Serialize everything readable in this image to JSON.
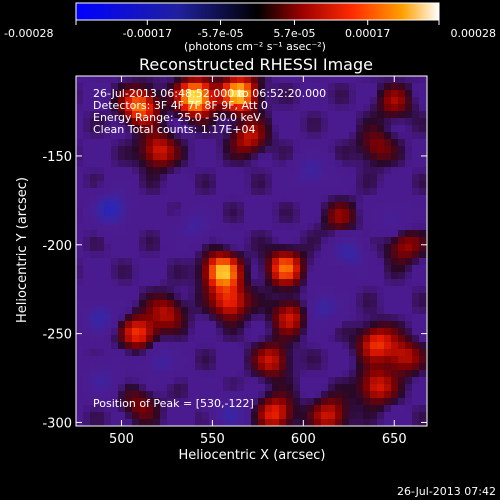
{
  "chart_data": {
    "type": "heatmap",
    "title": "Reconstructed RHESSI Image",
    "xlabel": "Heliocentric X (arcsec)",
    "ylabel": "Heliocentric Y (arcsec)",
    "xlim": [
      475,
      668
    ],
    "ylim": [
      -302,
      -105
    ],
    "x_ticks": [
      500,
      550,
      600,
      650
    ],
    "x_tick_labels": [
      "500",
      "550",
      "600",
      "650"
    ],
    "y_ticks": [
      -150,
      -200,
      -250,
      -300
    ],
    "y_tick_labels": [
      "-150",
      "-200",
      "-250",
      "-300"
    ],
    "colorbar": {
      "range": [
        -0.00028,
        0.00028
      ],
      "ticks": [
        -0.00028,
        -0.00017,
        -5.7e-05,
        5.7e-05,
        0.00017,
        0.00028
      ],
      "tick_labels": [
        "-0.00028",
        "-0.00017",
        "-5.7e-05",
        "5.7e-05",
        "0.00017",
        "0.00028"
      ],
      "units_label": "(photons cm⁻² s⁻¹ asec⁻²)"
    },
    "annotations": [
      "26-Jul-2013 06:48:52.000 to 06:52:20.000",
      "Detectors: 3F 4F 7F 8F 9F, Att 0",
      "Energy Range: 25.0 - 50.0 keV",
      "Clean    Total counts: 1.17E+04"
    ],
    "peak_label": "Position of Peak = [530,-122]",
    "peak": [
      530,
      -122
    ],
    "hotspots": [
      {
        "x": 541,
        "y": -117,
        "value": 0.00028
      },
      {
        "x": 565,
        "y": -115,
        "value": 0.00025
      },
      {
        "x": 510,
        "y": -122,
        "value": 0.0002
      },
      {
        "x": 520,
        "y": -147,
        "value": 0.00014
      },
      {
        "x": 570,
        "y": -140,
        "value": 0.00012
      },
      {
        "x": 555,
        "y": -215,
        "value": 0.00024
      },
      {
        "x": 560,
        "y": -232,
        "value": 0.00016
      },
      {
        "x": 590,
        "y": -213,
        "value": 0.00018
      },
      {
        "x": 593,
        "y": -240,
        "value": 0.00013
      },
      {
        "x": 583,
        "y": -265,
        "value": 0.00012
      },
      {
        "x": 510,
        "y": -250,
        "value": 0.00016
      },
      {
        "x": 525,
        "y": -238,
        "value": 0.00011
      },
      {
        "x": 585,
        "y": -295,
        "value": 0.00015
      },
      {
        "x": 615,
        "y": -296,
        "value": 0.00013
      },
      {
        "x": 640,
        "y": -255,
        "value": 0.00015
      },
      {
        "x": 640,
        "y": -280,
        "value": 0.00014
      },
      {
        "x": 655,
        "y": -263,
        "value": 0.00012
      },
      {
        "x": 655,
        "y": -200,
        "value": 0.00011
      },
      {
        "x": 640,
        "y": -145,
        "value": 9e-05
      },
      {
        "x": 620,
        "y": -185,
        "value": 8e-05
      },
      {
        "x": 650,
        "y": -120,
        "value": 9e-05
      },
      {
        "x": 510,
        "y": -290,
        "value": 8e-05
      }
    ],
    "coldspots": [
      {
        "x": 495,
        "y": -180,
        "value": -0.00017
      },
      {
        "x": 488,
        "y": -240,
        "value": -0.00012
      },
      {
        "x": 520,
        "y": -265,
        "value": -0.00011
      },
      {
        "x": 610,
        "y": -235,
        "value": -0.00012
      },
      {
        "x": 625,
        "y": -205,
        "value": -0.00012
      },
      {
        "x": 605,
        "y": -160,
        "value": -0.00011
      },
      {
        "x": 560,
        "y": -295,
        "value": -0.0001
      },
      {
        "x": 650,
        "y": -185,
        "value": -0.0001
      },
      {
        "x": 540,
        "y": -190,
        "value": -9e-05
      },
      {
        "x": 490,
        "y": -275,
        "value": -9e-05
      }
    ]
  },
  "footer": {
    "timestamp": "26-Jul-2013 07:42"
  }
}
